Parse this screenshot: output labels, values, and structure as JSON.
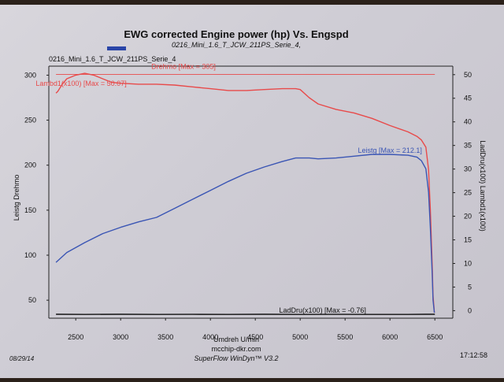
{
  "title": "EWG corrected Engine power (hp) Vs. Engspd",
  "subtitle": "0216_Mini_1.6_T_JCW_211PS_Serie_4,",
  "legend_run": "0216_Mini_1.6_T_JCW_211PS_Serie_4",
  "footer": {
    "site": "mcchip-dkr.com",
    "software": "SuperFlow WinDyn™ V3.2",
    "date": "08/29/14",
    "time": "17:12:58"
  },
  "colors": {
    "red": "#e84a4a",
    "blue": "#3a55b4",
    "black": "#111111",
    "frame": "#222222"
  },
  "chart_data": {
    "type": "line",
    "title": "EWG corrected Engine power (hp) Vs. Engspd",
    "xlabel": "Umdreh U/min",
    "ylabel_left": "Leistg Drehmo",
    "ylabel_right": "LadDru(x100) Lambd1(x100)",
    "xlim": [
      2200,
      6700
    ],
    "ylim_left": [
      30,
      310
    ],
    "ylim_right": [
      -1.6,
      51.8
    ],
    "x_ticks": [
      2500,
      3000,
      3500,
      4000,
      4500,
      5000,
      5500,
      6000,
      6500
    ],
    "y_ticks_left": [
      50,
      100,
      150,
      200,
      250,
      300
    ],
    "y_ticks_right": [
      0,
      5,
      10,
      15,
      20,
      25,
      30,
      35,
      40,
      45,
      50
    ],
    "series": [
      {
        "name": "Drehmo",
        "annotation": "Drehmo [Max = 305]",
        "axis": "left",
        "color": "#e84a4a",
        "x": [
          2280,
          2300,
          2350,
          2400,
          2500,
          2600,
          2700,
          2800,
          2900,
          3000,
          3200,
          3400,
          3600,
          3800,
          4000,
          4200,
          4400,
          4600,
          4800,
          4950,
          5000,
          5100,
          5200,
          5400,
          5600,
          5800,
          6000,
          6200,
          6300,
          6350,
          6400,
          6430,
          6450,
          6470,
          6480,
          6490,
          6495
        ],
        "y": [
          280,
          282,
          290,
          296,
          300,
          302,
          300,
          296,
          292,
          291,
          290,
          290,
          289,
          287,
          285,
          283,
          283,
          284,
          285,
          285,
          284,
          275,
          268,
          262,
          258,
          252,
          244,
          237,
          232,
          228,
          220,
          195,
          150,
          90,
          55,
          42,
          36
        ]
      },
      {
        "name": "Leistg",
        "annotation": "Leistg [Max = 212.1]",
        "axis": "left",
        "color": "#3a55b4",
        "x": [
          2280,
          2400,
          2600,
          2800,
          3000,
          3200,
          3400,
          3600,
          3800,
          4000,
          4200,
          4400,
          4600,
          4800,
          4950,
          5000,
          5100,
          5200,
          5400,
          5600,
          5800,
          6000,
          6200,
          6300,
          6350,
          6400,
          6430,
          6450,
          6470,
          6480,
          6490,
          6495
        ],
        "y": [
          92,
          103,
          114,
          124,
          131,
          137,
          142,
          152,
          162,
          172,
          182,
          191,
          198,
          204,
          208,
          208,
          208,
          207,
          208,
          210,
          212,
          212,
          211,
          209,
          205,
          196,
          170,
          130,
          80,
          50,
          40,
          36
        ]
      },
      {
        "name": "Lambd1(x100)",
        "annotation": "Lambd1(x100) [Max = 50.07]",
        "axis": "right",
        "color": "#e84a4a",
        "x": [
          2280,
          6500
        ],
        "y": [
          50.07,
          50.07
        ]
      },
      {
        "name": "LadDru(x100)",
        "annotation": "LadDru(x100) [Max = -0.76]",
        "axis": "right",
        "color": "#111111",
        "x": [
          2280,
          2600,
          3000,
          3400,
          3800,
          4200,
          4600,
          5000,
          5400,
          5800,
          6200,
          6400,
          6500
        ],
        "y": [
          -0.76,
          -0.8,
          -0.76,
          -0.8,
          -0.78,
          -0.8,
          -0.76,
          -0.8,
          -0.78,
          -0.8,
          -0.8,
          -0.76,
          -0.76
        ]
      }
    ]
  }
}
